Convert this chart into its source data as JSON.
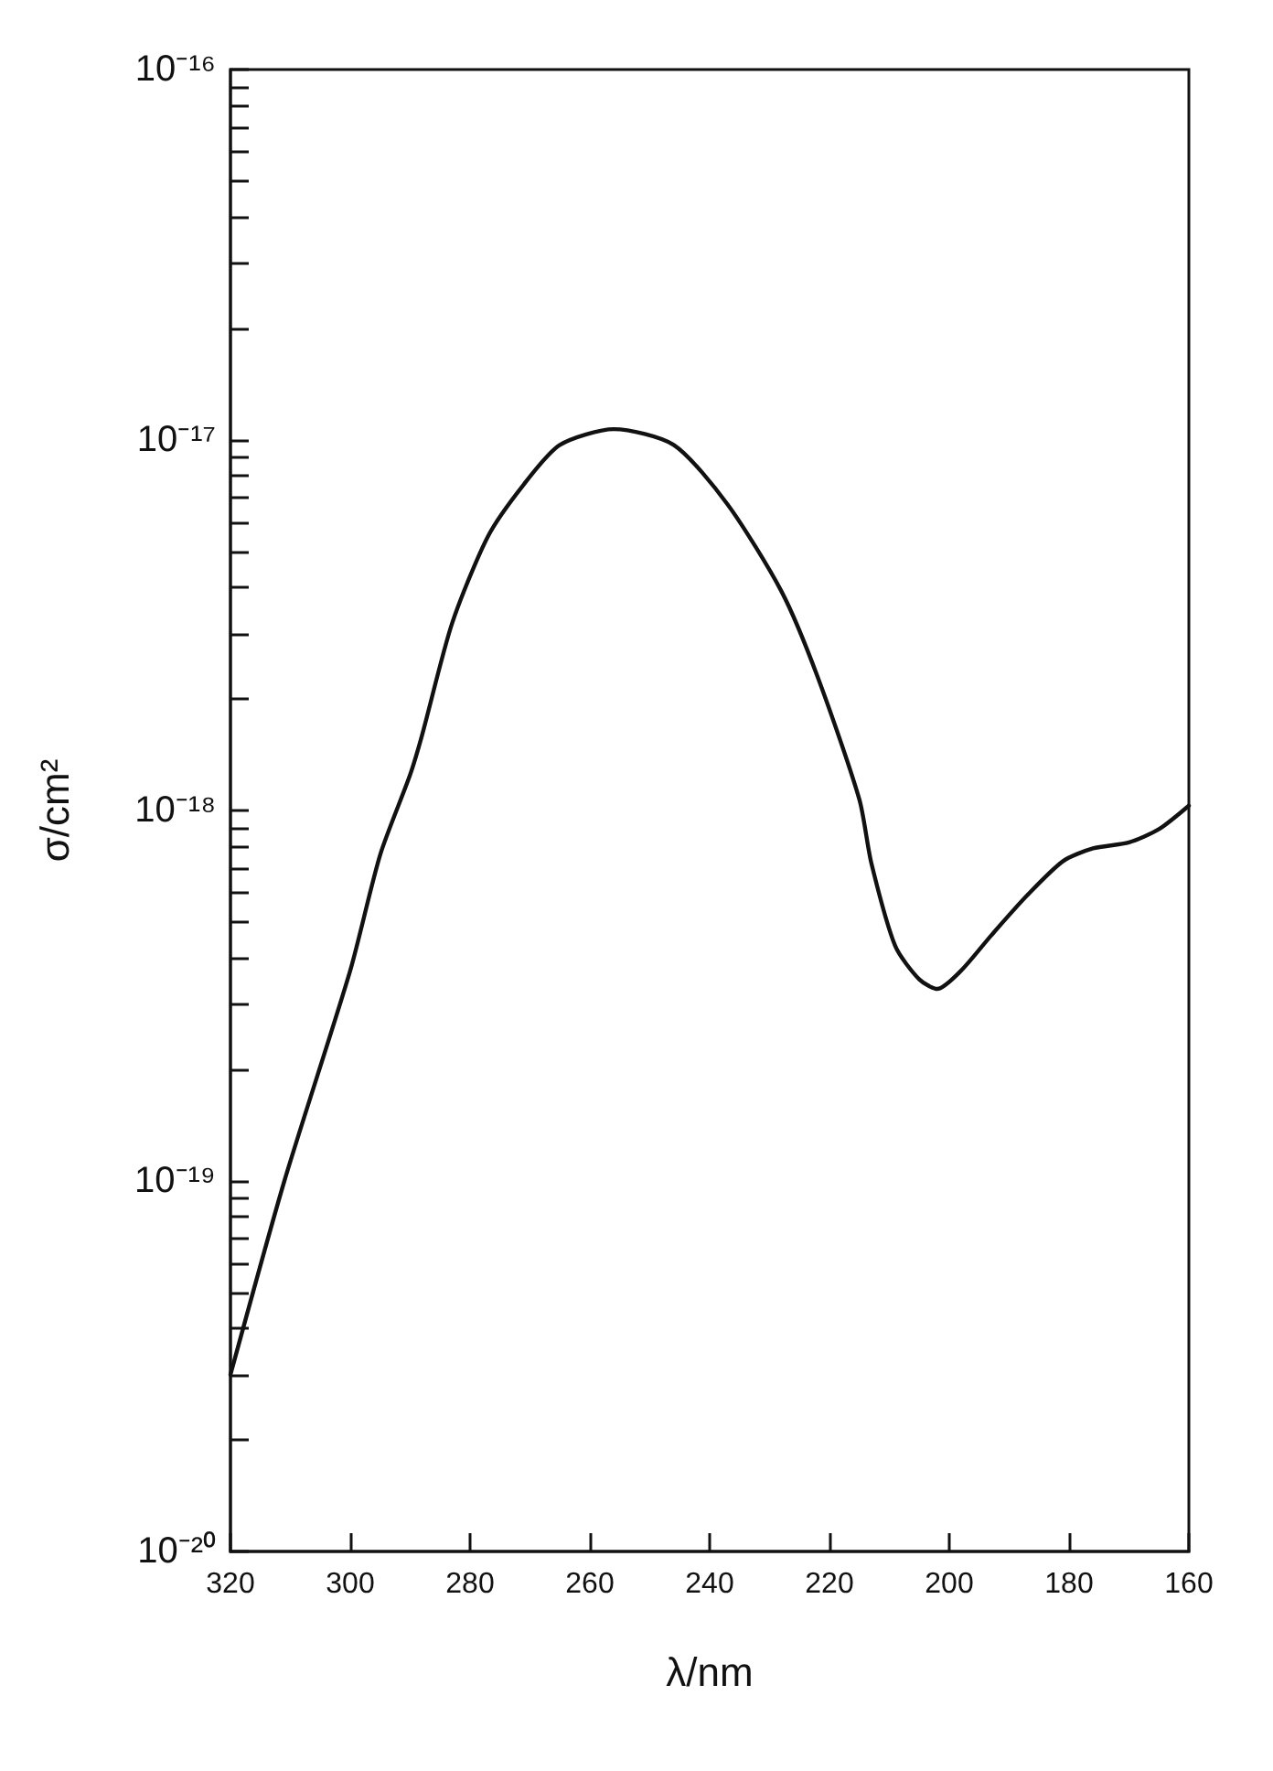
{
  "chart_data": {
    "type": "line",
    "xlabel": "λ/nm",
    "ylabel": "σ/cm²",
    "log": "y",
    "xlim": [
      320,
      160
    ],
    "xticks": [
      320,
      300,
      280,
      260,
      240,
      220,
      200,
      180,
      160
    ],
    "ylim": [
      1e-20,
      1e-16
    ],
    "yticks": [
      {
        "value": 1e-20,
        "label": "10⁻²⁰"
      },
      {
        "value": 2e-20,
        "label": null
      },
      {
        "value": 3e-20,
        "label": null
      },
      {
        "value": 4e-20,
        "label": null
      },
      {
        "value": 5e-20,
        "label": null
      },
      {
        "value": 6e-20,
        "label": null
      },
      {
        "value": 7e-20,
        "label": null
      },
      {
        "value": 8e-20,
        "label": null
      },
      {
        "value": 9e-20,
        "label": null
      },
      {
        "value": 1e-19,
        "label": "10⁻¹⁹"
      },
      {
        "value": 2e-19,
        "label": null
      },
      {
        "value": 3e-19,
        "label": null
      },
      {
        "value": 4e-19,
        "label": null
      },
      {
        "value": 5e-19,
        "label": null
      },
      {
        "value": 6e-19,
        "label": null
      },
      {
        "value": 7e-19,
        "label": null
      },
      {
        "value": 8e-19,
        "label": null
      },
      {
        "value": 9e-19,
        "label": null
      },
      {
        "value": 1e-18,
        "label": "10⁻¹⁸"
      },
      {
        "value": 2e-18,
        "label": null
      },
      {
        "value": 3e-18,
        "label": null
      },
      {
        "value": 4e-18,
        "label": null
      },
      {
        "value": 5e-18,
        "label": null
      },
      {
        "value": 6e-18,
        "label": null
      },
      {
        "value": 7e-18,
        "label": null
      },
      {
        "value": 8e-18,
        "label": null
      },
      {
        "value": 9e-18,
        "label": null
      },
      {
        "value": 1e-17,
        "label": "10⁻¹⁷"
      },
      {
        "value": 2e-17,
        "label": null
      },
      {
        "value": 3e-17,
        "label": null
      },
      {
        "value": 4e-17,
        "label": null
      },
      {
        "value": 5e-17,
        "label": null
      },
      {
        "value": 6e-17,
        "label": null
      },
      {
        "value": 7e-17,
        "label": null
      },
      {
        "value": 8e-17,
        "label": null
      },
      {
        "value": 9e-17,
        "label": null
      },
      {
        "value": 1e-16,
        "label": "10⁻¹⁶"
      }
    ],
    "grid": false,
    "marker": "none",
    "line_style": "solid",
    "series": [
      {
        "color": "#111111",
        "x": [
          320,
          311,
          300,
          295,
          290,
          288,
          283,
          277,
          271,
          265,
          256,
          246,
          237,
          228,
          222,
          215,
          213,
          209,
          205,
          202,
          198,
          193,
          187,
          181,
          176,
          170,
          165,
          160
        ],
        "values": [
          3e-20,
          1e-19,
          3.7e-19,
          7.6e-19,
          1.25e-18,
          1.6e-18,
          3.2e-18,
          5.5e-18,
          7.6e-18,
          9.7e-18,
          1.07e-17,
          9.7e-18,
          6.7e-18,
          3.9e-18,
          2.3e-18,
          1.07e-18,
          7.2e-19,
          4.3e-19,
          3.5e-19,
          3.3e-19,
          3.7e-19,
          4.6e-19,
          5.9e-19,
          7.3e-19,
          7.9e-19,
          8.2e-19,
          8.9e-19,
          1.03e-18
        ]
      }
    ]
  }
}
